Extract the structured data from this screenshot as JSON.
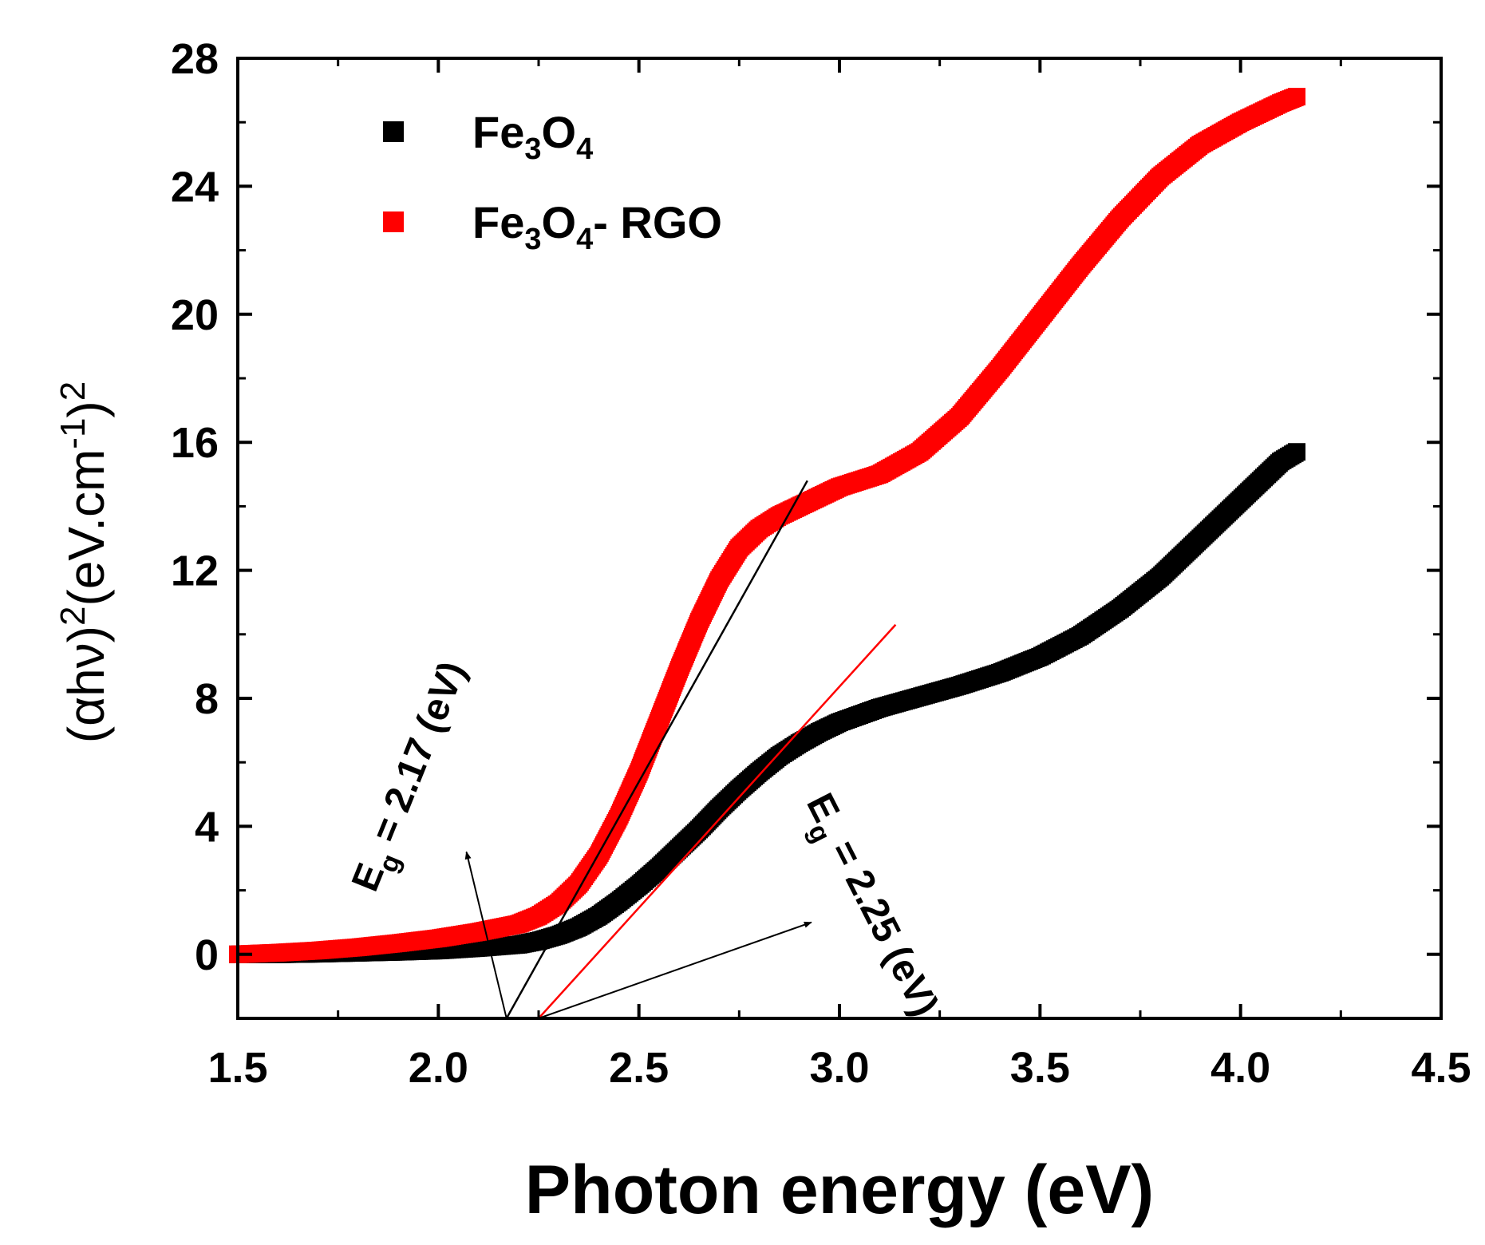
{
  "chart_data": {
    "type": "scatter",
    "xlabel": "Photon energy (eV)",
    "ylabel": {
      "open": "(",
      "alpha": "α",
      "hv": "hν",
      "close": ")",
      "exp1": "2",
      "units": "(eV.cm",
      "exp_units": "-1",
      "close2": ")",
      "exp2": "2"
    },
    "xlim": [
      1.5,
      4.5
    ],
    "ylim": [
      -2,
      28
    ],
    "xticks": [
      "1.5",
      "2.0",
      "2.5",
      "3.0",
      "3.5",
      "4.0",
      "4.5"
    ],
    "yticks": [
      "0",
      "4",
      "8",
      "12",
      "16",
      "20",
      "24",
      "28"
    ],
    "xtick_values": [
      1.5,
      2.0,
      2.5,
      3.0,
      3.5,
      4.0,
      4.5
    ],
    "ytick_values": [
      0,
      4,
      8,
      12,
      16,
      20,
      24,
      28
    ],
    "legend_position": "top-left",
    "grid": false,
    "series": [
      {
        "name_parts": [
          "Fe",
          "3",
          "O",
          "4",
          ""
        ],
        "color": "#000000",
        "x": [
          1.5,
          1.6,
          1.7,
          1.8,
          1.9,
          2.0,
          2.1,
          2.2,
          2.25,
          2.3,
          2.35,
          2.4,
          2.45,
          2.5,
          2.55,
          2.6,
          2.65,
          2.7,
          2.75,
          2.8,
          2.85,
          2.9,
          2.95,
          3.0,
          3.1,
          3.2,
          3.3,
          3.4,
          3.5,
          3.6,
          3.7,
          3.8,
          3.9,
          4.0,
          4.05,
          4.1,
          4.14
        ],
        "y": [
          0.0,
          0.0,
          0.02,
          0.05,
          0.08,
          0.12,
          0.2,
          0.3,
          0.42,
          0.6,
          0.85,
          1.2,
          1.65,
          2.15,
          2.7,
          3.3,
          3.9,
          4.55,
          5.15,
          5.7,
          6.2,
          6.6,
          6.95,
          7.25,
          7.7,
          8.05,
          8.4,
          8.8,
          9.3,
          9.95,
          10.8,
          11.8,
          13.0,
          14.2,
          14.8,
          15.4,
          15.7
        ]
      },
      {
        "name_parts": [
          "Fe",
          "3",
          "O",
          "4",
          "- RGO"
        ],
        "color": "#ff0000",
        "x": [
          1.5,
          1.6,
          1.7,
          1.8,
          1.9,
          2.0,
          2.1,
          2.2,
          2.25,
          2.3,
          2.35,
          2.4,
          2.45,
          2.5,
          2.55,
          2.6,
          2.65,
          2.7,
          2.75,
          2.8,
          2.85,
          2.9,
          2.95,
          3.0,
          3.1,
          3.2,
          3.3,
          3.4,
          3.5,
          3.6,
          3.7,
          3.8,
          3.9,
          4.0,
          4.1,
          4.14
        ],
        "y": [
          0.0,
          0.05,
          0.12,
          0.22,
          0.35,
          0.5,
          0.7,
          0.95,
          1.2,
          1.6,
          2.2,
          3.1,
          4.3,
          5.7,
          7.3,
          8.9,
          10.4,
          11.7,
          12.7,
          13.3,
          13.7,
          14.0,
          14.3,
          14.6,
          15.0,
          15.7,
          16.8,
          18.3,
          19.9,
          21.5,
          23.0,
          24.3,
          25.3,
          26.0,
          26.6,
          26.8
        ]
      }
    ],
    "fit_lines": [
      {
        "color": "#000000",
        "x": [
          2.17,
          2.92
        ],
        "y": [
          -2.0,
          14.8
        ]
      },
      {
        "color": "#ff0000",
        "x": [
          2.25,
          3.14
        ],
        "y": [
          -2.0,
          10.3
        ]
      }
    ],
    "annotations": [
      {
        "color": "#000000",
        "prefix": "E",
        "sub": "g",
        "text": "= 2.17 (eV)",
        "anchor": [
          2.17,
          -2.0
        ],
        "arrow_to": [
          2.07,
          3.2
        ]
      },
      {
        "color": "#000000",
        "prefix": "E",
        "sub": "g",
        "text": "= 2.25 (eV)",
        "anchor": [
          2.25,
          -2.0
        ],
        "arrow_to": [
          2.93,
          1.0
        ]
      }
    ]
  }
}
